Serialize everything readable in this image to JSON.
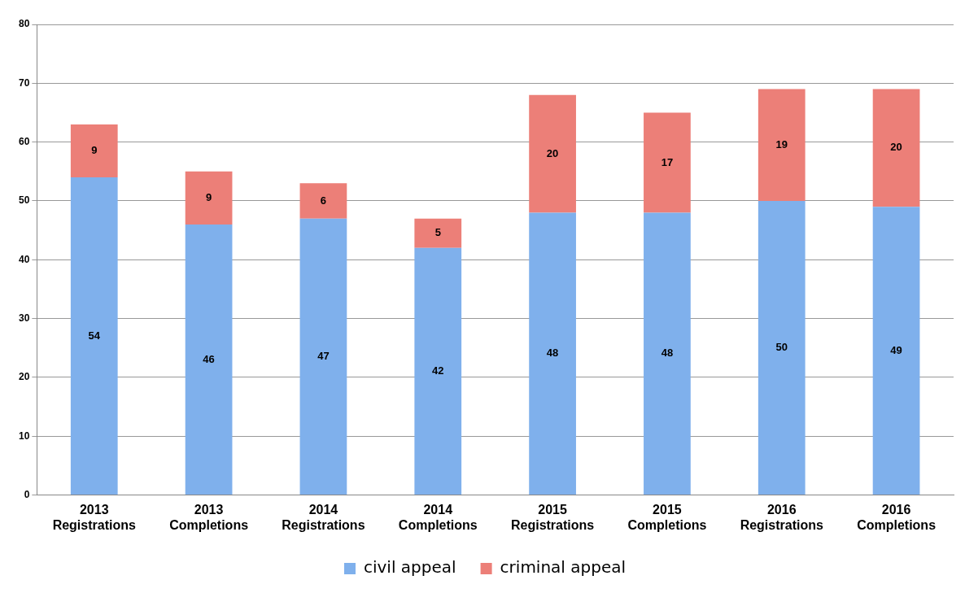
{
  "chart_data": {
    "type": "bar",
    "stacked": true,
    "data_labels": true,
    "grid": "y",
    "legend": "bottom",
    "categories": [
      "2013 Registrations",
      "2013 Completions",
      "2014 Registrations",
      "2014 Completions",
      "2015 Registrations",
      "2015 Completions",
      "2016 Registrations",
      "2016 Completions"
    ],
    "series": [
      {
        "name": "civil appeal",
        "color": "#7fb0ec",
        "values": [
          54,
          46,
          47,
          42,
          48,
          48,
          50,
          49
        ]
      },
      {
        "name": "criminal appeal",
        "color": "#ec7f78",
        "values": [
          9,
          9,
          6,
          5,
          20,
          17,
          19,
          20
        ]
      }
    ],
    "ylim": [
      0,
      80
    ],
    "yticks": [
      0,
      10,
      20,
      30,
      40,
      50,
      60,
      70,
      80
    ]
  }
}
